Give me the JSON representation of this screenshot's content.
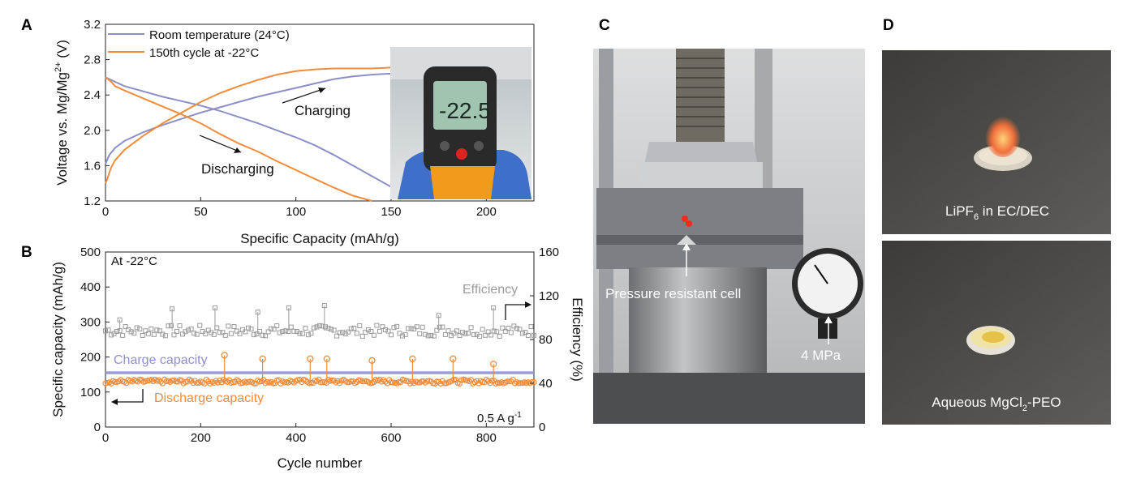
{
  "panels": {
    "a": "A",
    "b": "B",
    "c": "C",
    "d": "D"
  },
  "colors": {
    "room_temp": "#8c8fc8",
    "low_temp": "#f28c3c",
    "efficiency": "#9a9a9a",
    "charge": "#8f90d0",
    "discharge": "#f28c3c"
  },
  "chart_data": [
    {
      "id": "A",
      "type": "line",
      "xlabel": "Specific Capacity (mAh/g)",
      "ylabel_main": "Voltage vs. Mg/Mg",
      "ylabel_sup": "2+",
      "ylabel_unit": " (V)",
      "xlim": [
        0,
        225
      ],
      "ylim": [
        1.2,
        3.2
      ],
      "xticks": [
        "0",
        "50",
        "100",
        "150",
        "200"
      ],
      "yticks": [
        "1.2",
        "1.6",
        "2.0",
        "2.4",
        "2.8",
        "3.2"
      ],
      "legend": [
        {
          "name": "Room temperature (24°C)",
          "color": "#8c8fc8"
        },
        {
          "name": "150th cycle at -22°C",
          "color": "#f28c3c"
        }
      ],
      "annotations": [
        "Charging",
        "Discharging"
      ],
      "inset_display": "-22.5",
      "series": [
        {
          "name": "Room temperature (24°C) charge",
          "color": "#8c8fc8",
          "x": [
            0,
            2,
            5,
            10,
            20,
            30,
            40,
            50,
            60,
            70,
            80,
            90,
            100,
            110,
            120,
            130,
            140,
            148,
            150
          ],
          "y": [
            1.62,
            1.72,
            1.8,
            1.88,
            1.98,
            2.06,
            2.13,
            2.2,
            2.26,
            2.32,
            2.38,
            2.43,
            2.48,
            2.53,
            2.58,
            2.61,
            2.63,
            2.64,
            2.64
          ]
        },
        {
          "name": "Room temperature (24°C) discharge",
          "color": "#8c8fc8",
          "x": [
            0,
            5,
            10,
            20,
            30,
            40,
            50,
            60,
            70,
            80,
            90,
            100,
            110,
            120,
            130,
            140,
            150
          ],
          "y": [
            2.6,
            2.55,
            2.5,
            2.44,
            2.38,
            2.33,
            2.28,
            2.22,
            2.15,
            2.08,
            2.0,
            1.92,
            1.83,
            1.72,
            1.6,
            1.48,
            1.36
          ]
        },
        {
          "name": "150th cycle at -22°C charge",
          "color": "#f28c3c",
          "x": [
            0,
            1,
            2,
            3,
            5,
            10,
            20,
            30,
            40,
            50,
            60,
            70,
            80,
            90,
            100,
            110,
            120,
            130,
            140,
            150
          ],
          "y": [
            1.4,
            1.45,
            1.52,
            1.58,
            1.66,
            1.78,
            1.94,
            2.08,
            2.2,
            2.32,
            2.42,
            2.5,
            2.57,
            2.63,
            2.67,
            2.69,
            2.7,
            2.7,
            2.7,
            2.71
          ]
        },
        {
          "name": "150th cycle at -22°C discharge",
          "color": "#f28c3c",
          "x": [
            0,
            3,
            5,
            10,
            20,
            30,
            40,
            50,
            60,
            70,
            80,
            90,
            100,
            110,
            120,
            130,
            140
          ],
          "y": [
            2.6,
            2.55,
            2.5,
            2.45,
            2.36,
            2.27,
            2.18,
            2.08,
            1.96,
            1.85,
            1.76,
            1.65,
            1.55,
            1.45,
            1.35,
            1.26,
            1.2
          ]
        }
      ]
    },
    {
      "id": "B",
      "type": "scatter",
      "xlabel": "Cycle number",
      "ylabel": "Specific capacity (mAh/g)",
      "ylabel2": "Efficiency (%)",
      "xlim": [
        0,
        900
      ],
      "ylim": [
        0,
        500
      ],
      "ylim2": [
        0,
        160
      ],
      "xticks": [
        "0",
        "200",
        "400",
        "600",
        "800"
      ],
      "yticks": [
        "0",
        "100",
        "200",
        "300",
        "400",
        "500"
      ],
      "yticks2": [
        "0",
        "40",
        "80",
        "120",
        "160"
      ],
      "annotations": {
        "condition": "At -22°C",
        "rate": "0.5 A g",
        "rate_sup": "-1",
        "efficiency": "Efficiency",
        "charge": "Charge capacity",
        "discharge": "Discharge capacity"
      },
      "series": [
        {
          "name": "Efficiency",
          "axis": "right",
          "marker": "square",
          "mean": 88,
          "spread": 5,
          "spikes": [
            [
              30,
              98
            ],
            [
              140,
              108
            ],
            [
              230,
              109
            ],
            [
              320,
              105
            ],
            [
              385,
              109
            ],
            [
              460,
              111
            ],
            [
              700,
              102
            ],
            [
              815,
              109
            ]
          ]
        },
        {
          "name": "Charge capacity",
          "axis": "left",
          "mean": 155,
          "spread": 4
        },
        {
          "name": "Discharge capacity",
          "axis": "left",
          "marker": "circle",
          "mean": 130,
          "spread": 6,
          "spikes": [
            [
              250,
              205
            ],
            [
              330,
              195
            ],
            [
              430,
              195
            ],
            [
              465,
              195
            ],
            [
              560,
              190
            ],
            [
              645,
              195
            ],
            [
              730,
              195
            ],
            [
              815,
              180
            ]
          ]
        }
      ]
    }
  ],
  "photos": {
    "c_label1": "Pressure resistant cell",
    "c_label2": "4 MPa",
    "d_label1_main": "LiPF",
    "d_label1_sub": "6",
    "d_label1_rest": " in EC/DEC",
    "d_label2_main": "Aqueous MgCl",
    "d_label2_sub": "2",
    "d_label2_rest": "-PEO"
  }
}
